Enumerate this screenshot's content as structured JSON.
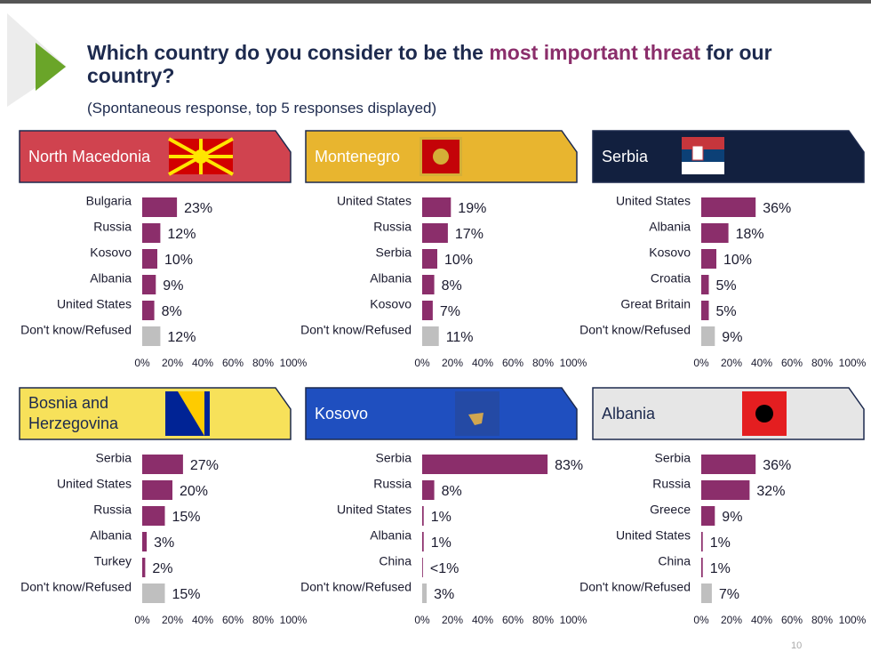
{
  "header": {
    "title_parts": [
      "Which country do you consider to be the ",
      "most important threat",
      " for our country?"
    ],
    "subtitle": "(Spontaneous response, top 5 responses displayed)",
    "page_number": "10"
  },
  "chart_data": [
    {
      "type": "bar",
      "title": "North Macedonia",
      "panel_color": "#d0434f",
      "title_color": "#ffffff",
      "categories": [
        "Bulgaria",
        "Russia",
        "Kosovo",
        "Albania",
        "United States",
        "Don't know/Refused"
      ],
      "values": [
        23,
        12,
        10,
        9,
        8,
        12
      ],
      "value_labels": [
        "23%",
        "12%",
        "10%",
        "9%",
        "8%",
        "12%"
      ],
      "colors": [
        "#8b2e6b",
        "#8b2e6b",
        "#8b2e6b",
        "#8b2e6b",
        "#8b2e6b",
        "#bfbfbf"
      ],
      "xlim": [
        0,
        100
      ],
      "xticks": [
        {
          "value": 0,
          "label": "0%"
        },
        {
          "value": 20,
          "label": "20%"
        },
        {
          "value": 40,
          "label": "40%"
        },
        {
          "value": 60,
          "label": "60%"
        },
        {
          "value": 80,
          "label": "80%"
        },
        {
          "value": 100,
          "label": "100%"
        }
      ]
    },
    {
      "type": "bar",
      "title": "Montenegro",
      "panel_color": "#e8b52f",
      "title_color": "#ffffff",
      "categories": [
        "United States",
        "Russia",
        "Serbia",
        "Albania",
        "Kosovo",
        "Don't know/Refused"
      ],
      "values": [
        19,
        17,
        10,
        8,
        7,
        11
      ],
      "value_labels": [
        "19%",
        "17%",
        "10%",
        "8%",
        "7%",
        "11%"
      ],
      "colors": [
        "#8b2e6b",
        "#8b2e6b",
        "#8b2e6b",
        "#8b2e6b",
        "#8b2e6b",
        "#bfbfbf"
      ],
      "xlim": [
        0,
        100
      ],
      "xticks": [
        {
          "value": 0,
          "label": "0%"
        },
        {
          "value": 20,
          "label": "20%"
        },
        {
          "value": 40,
          "label": "40%"
        },
        {
          "value": 60,
          "label": "60%"
        },
        {
          "value": 80,
          "label": "80%"
        },
        {
          "value": 100,
          "label": "100%"
        }
      ]
    },
    {
      "type": "bar",
      "title": "Serbia",
      "panel_color": "#12203f",
      "title_color": "#ffffff",
      "categories": [
        "United States",
        "Albania",
        "Kosovo",
        "Croatia",
        "Great Britain",
        "Don't know/Refused"
      ],
      "values": [
        36,
        18,
        10,
        5,
        5,
        9
      ],
      "value_labels": [
        "36%",
        "18%",
        "10%",
        "5%",
        "5%",
        "9%"
      ],
      "colors": [
        "#8b2e6b",
        "#8b2e6b",
        "#8b2e6b",
        "#8b2e6b",
        "#8b2e6b",
        "#bfbfbf"
      ],
      "xlim": [
        0,
        100
      ],
      "xticks": [
        {
          "value": 0,
          "label": "0%"
        },
        {
          "value": 20,
          "label": "20%"
        },
        {
          "value": 40,
          "label": "40%"
        },
        {
          "value": 60,
          "label": "60%"
        },
        {
          "value": 80,
          "label": "80%"
        },
        {
          "value": 100,
          "label": "100%"
        }
      ]
    },
    {
      "type": "bar",
      "title": "Bosnia and Herzegovina",
      "panel_color": "#f7e15a",
      "title_color": "#1d2a4e",
      "categories": [
        "Serbia",
        "United States",
        "Russia",
        "Albania",
        "Turkey",
        "Don't know/Refused"
      ],
      "values": [
        27,
        20,
        15,
        3,
        2,
        15
      ],
      "value_labels": [
        "27%",
        "20%",
        "15%",
        "3%",
        "2%",
        "15%"
      ],
      "colors": [
        "#8b2e6b",
        "#8b2e6b",
        "#8b2e6b",
        "#8b2e6b",
        "#8b2e6b",
        "#bfbfbf"
      ],
      "xlim": [
        0,
        100
      ],
      "xticks": [
        {
          "value": 0,
          "label": "0%"
        },
        {
          "value": 20,
          "label": "20%"
        },
        {
          "value": 40,
          "label": "40%"
        },
        {
          "value": 60,
          "label": "60%"
        },
        {
          "value": 80,
          "label": "80%"
        },
        {
          "value": 100,
          "label": "100%"
        }
      ]
    },
    {
      "type": "bar",
      "title": "Kosovo",
      "panel_color": "#1f4fbf",
      "title_color": "#ffffff",
      "categories": [
        "Serbia",
        "Russia",
        "United States",
        "Albania",
        "China",
        "Don't know/Refused"
      ],
      "values": [
        83,
        8,
        1,
        1,
        0.5,
        3
      ],
      "value_labels": [
        "83%",
        "8%",
        "1%",
        "1%",
        "<1%",
        "3%"
      ],
      "colors": [
        "#8b2e6b",
        "#8b2e6b",
        "#8b2e6b",
        "#8b2e6b",
        "#8b2e6b",
        "#bfbfbf"
      ],
      "xlim": [
        0,
        100
      ],
      "xticks": [
        {
          "value": 0,
          "label": "0%"
        },
        {
          "value": 20,
          "label": "20%"
        },
        {
          "value": 40,
          "label": "40%"
        },
        {
          "value": 60,
          "label": "60%"
        },
        {
          "value": 80,
          "label": "80%"
        },
        {
          "value": 100,
          "label": "100%"
        }
      ]
    },
    {
      "type": "bar",
      "title": "Albania",
      "panel_color": "#e6e6e6",
      "title_color": "#1d2a4e",
      "categories": [
        "Serbia",
        "Russia",
        "Greece",
        "United States",
        "China",
        "Don't know/Refused"
      ],
      "values": [
        36,
        32,
        9,
        1,
        1,
        7
      ],
      "value_labels": [
        "36%",
        "32%",
        "9%",
        "1%",
        "1%",
        "7%"
      ],
      "colors": [
        "#8b2e6b",
        "#8b2e6b",
        "#8b2e6b",
        "#8b2e6b",
        "#8b2e6b",
        "#bfbfbf"
      ],
      "xlim": [
        0,
        100
      ],
      "xticks": [
        {
          "value": 0,
          "label": "0%"
        },
        {
          "value": 20,
          "label": "20%"
        },
        {
          "value": 40,
          "label": "40%"
        },
        {
          "value": 60,
          "label": "60%"
        },
        {
          "value": 80,
          "label": "80%"
        },
        {
          "value": 100,
          "label": "100%"
        }
      ]
    }
  ]
}
